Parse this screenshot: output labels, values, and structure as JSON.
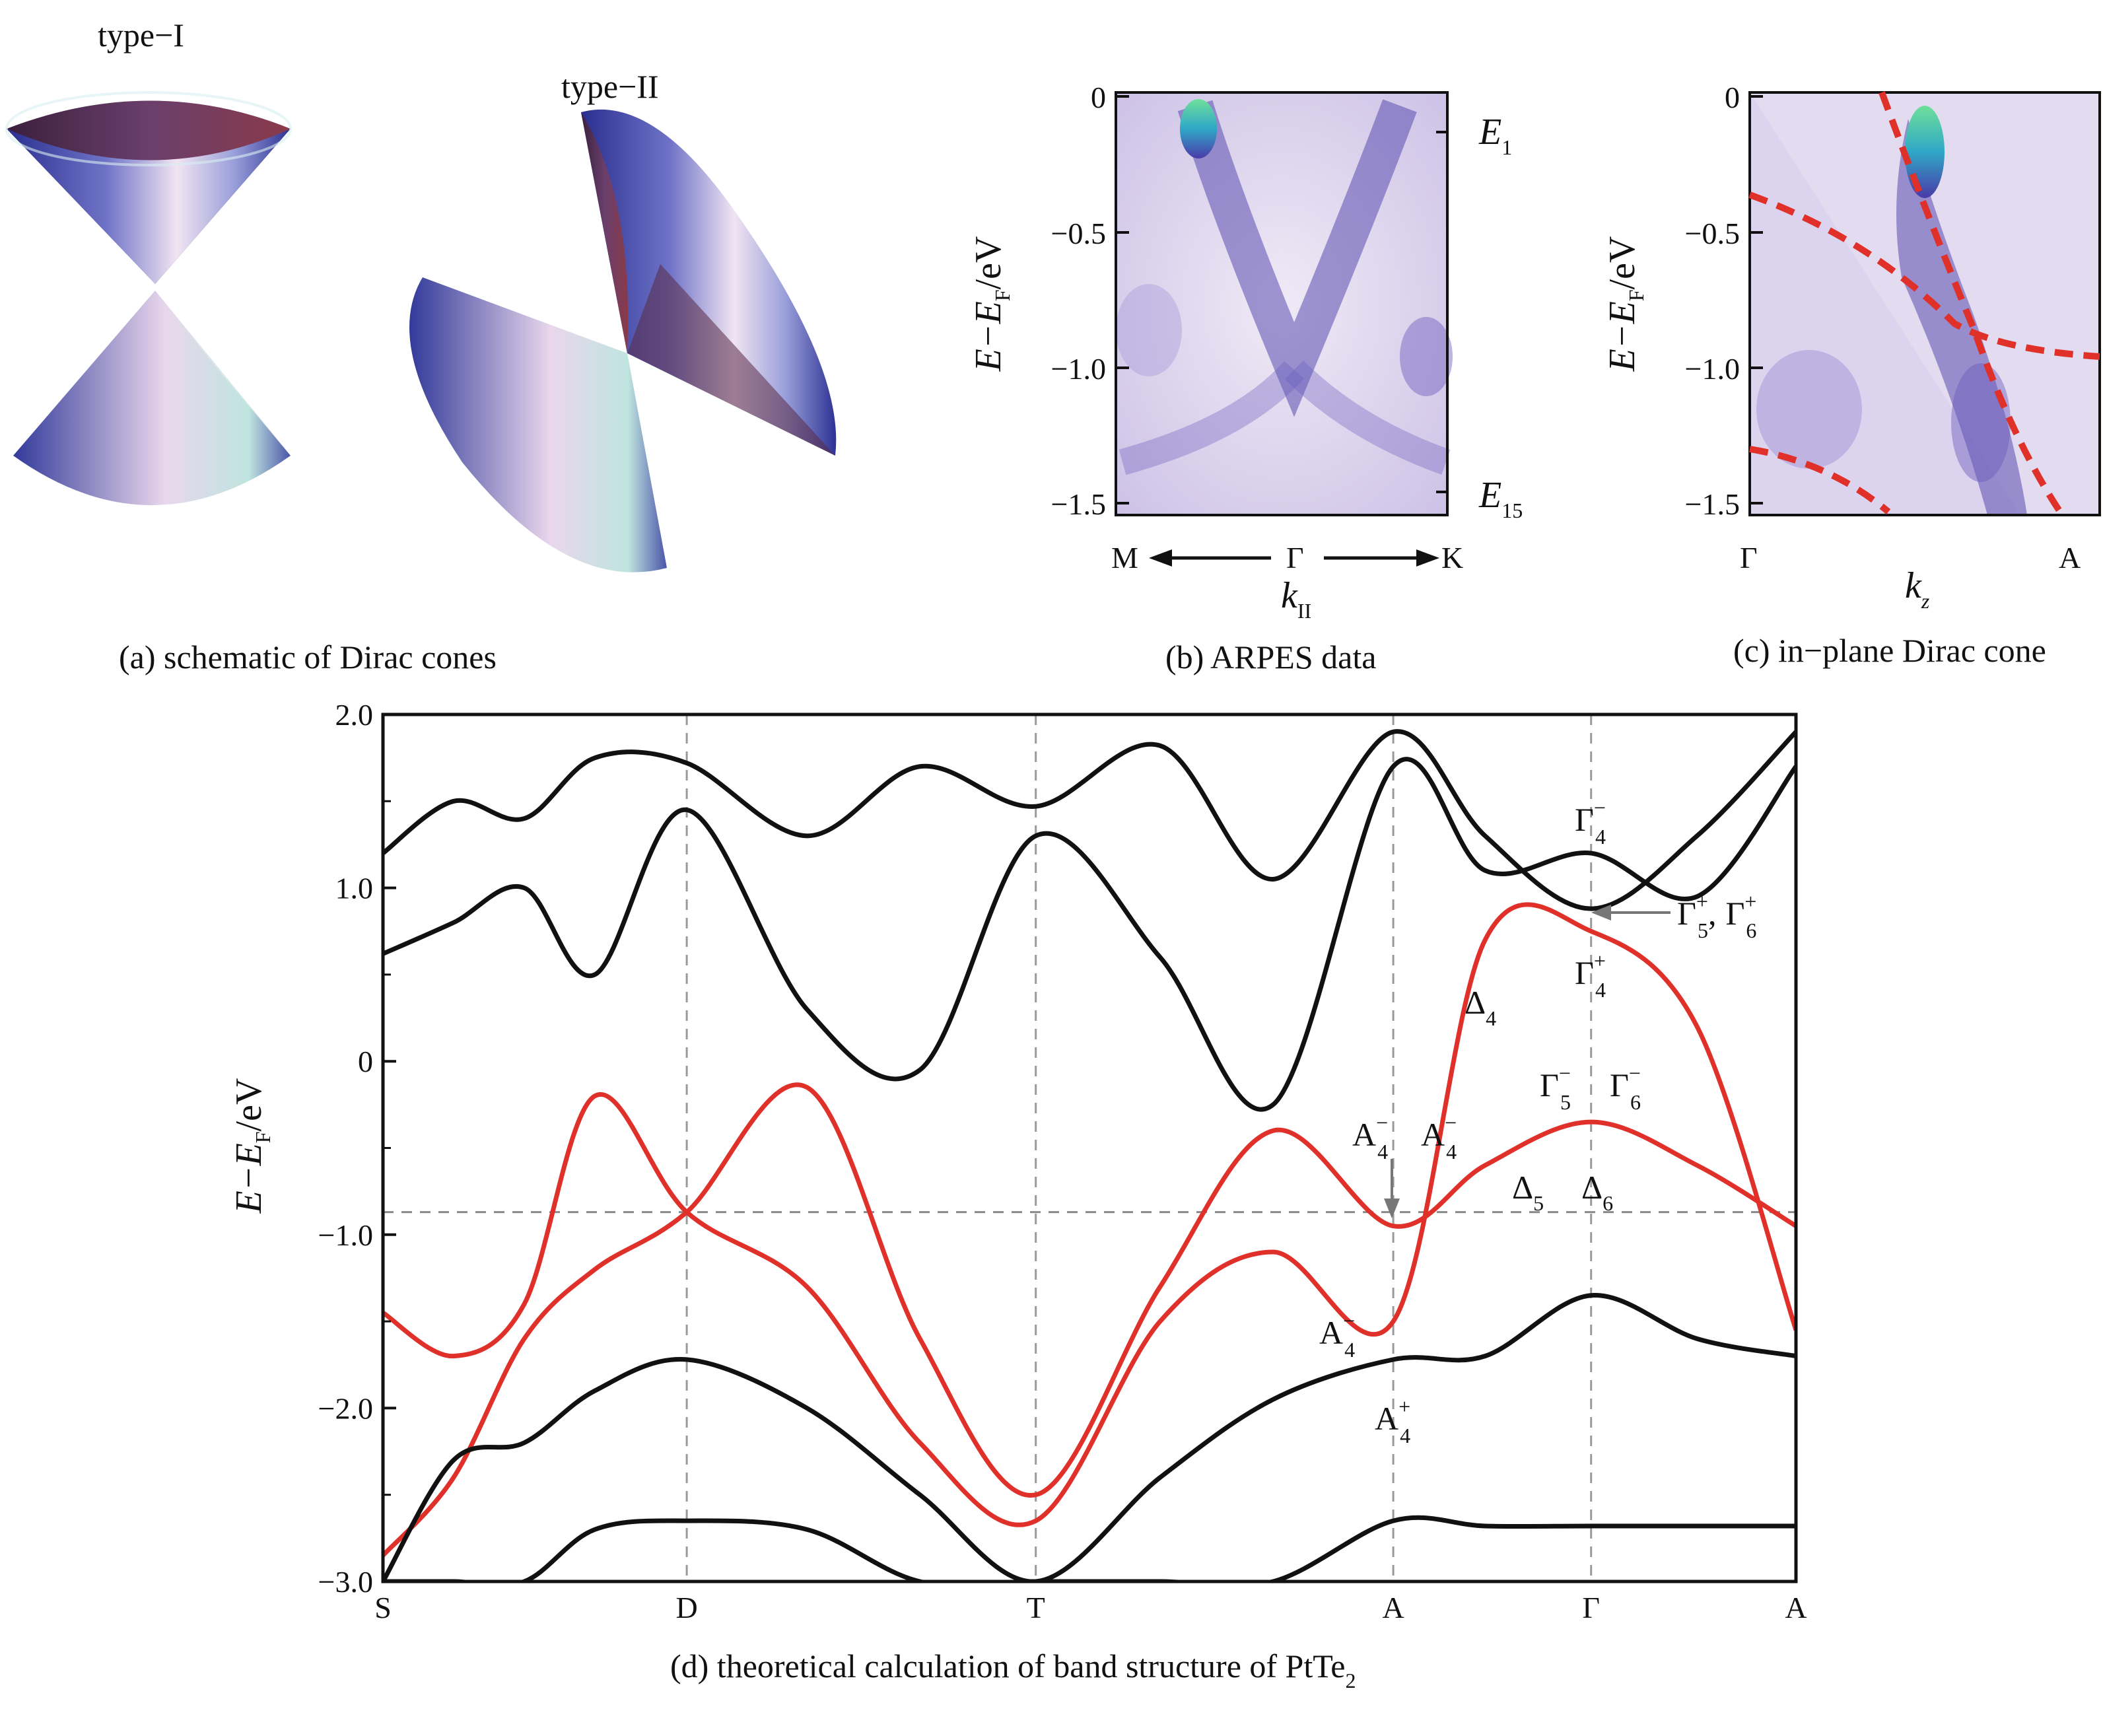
{
  "panel_a": {
    "caption": "(a) schematic of Dirac cones",
    "type1_label": "type−I",
    "type2_label": "type−II"
  },
  "panel_b": {
    "caption": "(b) ARPES data",
    "ylabel_main": "E−E",
    "ylabel_sub": "F",
    "ylabel_unit": "/eV",
    "yticks": [
      "0",
      "−0.5",
      "−1.0",
      "−1.5"
    ],
    "ytick_values": [
      0,
      -0.5,
      -1.0,
      -1.5
    ],
    "right_label_top": "E",
    "right_label_top_sub": "1",
    "right_label_bottom": "E",
    "right_label_bottom_sub": "15",
    "x_left": "M",
    "x_mid": "Γ",
    "x_right": "K",
    "xlabel": "k",
    "xlabel_sub": "II"
  },
  "panel_c": {
    "caption": "(c) in−plane Dirac cone",
    "ylabel_main": "E−E",
    "ylabel_sub": "F",
    "ylabel_unit": "/eV",
    "yticks": [
      "0",
      "−0.5",
      "−1.0",
      "−1.5"
    ],
    "ytick_values": [
      0,
      -0.5,
      -1.0,
      -1.5
    ],
    "x_left": "Γ",
    "x_right": "A",
    "xlabel": "k",
    "xlabel_sub": "z",
    "dashed_color": "#e0302a"
  },
  "panel_d": {
    "caption_main": "(d) theoretical calculation of band structure of PtTe",
    "caption_sub": "2",
    "ylabel_main": "E−E",
    "ylabel_sub": "F",
    "ylabel_unit": "/eV",
    "yticks": [
      "2.0",
      "1.0",
      "0",
      "−1.0",
      "−2.0",
      "−3.0"
    ],
    "ytick_values": [
      2.0,
      1.0,
      0,
      -1.0,
      -2.0,
      -3.0
    ],
    "ylim": [
      -3.0,
      2.0
    ],
    "hline_energy": -0.87,
    "xticks": [
      "S",
      "D",
      "T",
      "A",
      "Γ",
      "A"
    ],
    "xtick_positions": [
      0,
      0.215,
      0.462,
      0.715,
      0.855,
      1.0
    ],
    "black_color": "#111111",
    "red_color": "#e0302a",
    "annotations": [
      {
        "base": "Γ",
        "sup": "−",
        "sub": "4"
      },
      {
        "base": "Γ",
        "sup": "+",
        "sub": "5"
      },
      {
        "base": "Γ",
        "sup": "+",
        "sub": "6"
      },
      {
        "base": "Γ",
        "sup": "+",
        "sub": "4"
      },
      {
        "base": "Δ",
        "sup": "",
        "sub": "4"
      },
      {
        "base": "Γ",
        "sup": "−",
        "sub": "5"
      },
      {
        "base": "Γ",
        "sup": "−",
        "sub": "6"
      },
      {
        "base": "A",
        "sup": "−",
        "sub": "4"
      },
      {
        "base": "A",
        "sup": "−",
        "sub": "4"
      },
      {
        "base": "Δ",
        "sup": "",
        "sub": "5"
      },
      {
        "base": "Δ",
        "sup": "",
        "sub": "6"
      },
      {
        "base": "A",
        "sup": "−",
        "sub": "4"
      },
      {
        "base": "A",
        "sup": "+",
        "sub": "4"
      }
    ],
    "gamma56_separator": ",",
    "chart_data": {
      "type": "line",
      "x": [
        0,
        0.05,
        0.1,
        0.15,
        0.215,
        0.3,
        0.38,
        0.462,
        0.55,
        0.63,
        0.715,
        0.78,
        0.855,
        0.93,
        1.0
      ],
      "series": [
        {
          "values": [
            1.2,
            1.5,
            1.4,
            1.75,
            1.72,
            1.3,
            1.7,
            1.47,
            1.82,
            1.05,
            1.9,
            1.3,
            0.88,
            1.3,
            1.9
          ]
        },
        {
          "values": [
            0.62,
            0.8,
            1.0,
            0.5,
            1.45,
            0.3,
            -0.05,
            1.3,
            0.6,
            -0.25,
            1.7,
            1.1,
            1.2,
            0.95,
            1.7
          ]
        },
        {
          "values": [
            -1.45,
            -1.7,
            -1.4,
            -0.2,
            -0.87,
            -1.3,
            -2.2,
            -2.65,
            -1.5,
            -1.1,
            -1.5,
            0.7,
            0.75,
            0.2,
            -1.55
          ]
        },
        {
          "values": [
            -2.85,
            -2.4,
            -1.6,
            -1.2,
            -0.87,
            -0.15,
            -1.6,
            -2.5,
            -1.3,
            -0.4,
            -0.95,
            -0.6,
            -0.35,
            -0.6,
            -0.95
          ]
        },
        {
          "values": [
            -3.0,
            -2.3,
            -2.2,
            -1.9,
            -1.72,
            -2.0,
            -2.5,
            -3.0,
            -2.4,
            -1.95,
            -1.72,
            -1.7,
            -1.35,
            -1.6,
            -1.7
          ]
        },
        {
          "values": [
            -3.0,
            -3.0,
            -3.0,
            -2.7,
            -2.65,
            -2.7,
            -3.0,
            -3.0,
            -3.0,
            -3.0,
            -2.65,
            -2.68,
            -2.68,
            -2.68,
            -2.68
          ]
        }
      ]
    }
  }
}
